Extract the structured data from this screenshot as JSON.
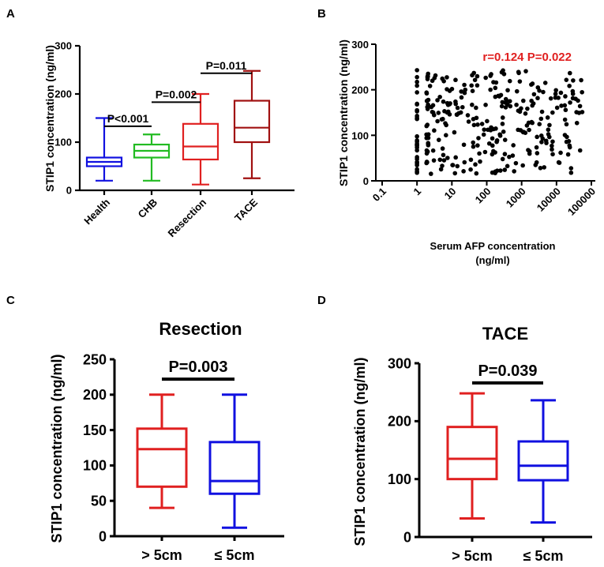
{
  "panels": {
    "a": "A",
    "b": "B",
    "c": "C",
    "d": "D"
  },
  "chart_data": [
    {
      "id": "A",
      "type": "box",
      "ylabel": "STIP1 concentration (ng/ml)",
      "ylim": [
        0,
        300
      ],
      "yticks": [
        0,
        100,
        200,
        300
      ],
      "categories": [
        "Health",
        "CHB",
        "Resection",
        "TACE"
      ],
      "colors": [
        "#1010e0",
        "#22bb22",
        "#e02020",
        "#a01010"
      ],
      "boxes": [
        {
          "min": 20,
          "q1": 50,
          "median": 59,
          "q3": 68,
          "max": 150
        },
        {
          "min": 20,
          "q1": 68,
          "median": 82,
          "q3": 95,
          "max": 116
        },
        {
          "min": 12,
          "q1": 64,
          "median": 91,
          "q3": 138,
          "max": 200
        },
        {
          "min": 25,
          "q1": 100,
          "median": 130,
          "q3": 186,
          "max": 248
        }
      ],
      "comparisons": [
        {
          "from": 0,
          "to": 1,
          "y": 133,
          "label": "P<0.001"
        },
        {
          "from": 1,
          "to": 2,
          "y": 183,
          "label": "P=0.002"
        },
        {
          "from": 2,
          "to": 3,
          "y": 243,
          "label": "P=0.011"
        }
      ]
    },
    {
      "id": "B",
      "type": "scatter",
      "xscale": "log",
      "xlim": [
        0.1,
        100000
      ],
      "xticks": [
        "0.1",
        "1",
        "10",
        "100",
        "1000",
        "10000",
        "100000"
      ],
      "ylim": [
        0,
        300
      ],
      "yticks": [
        0,
        100,
        200,
        300
      ],
      "xlabel_line1": "Serum AFP concentration",
      "xlabel_line2": "(ng/ml)",
      "ylabel": "STIP1 concentration (ng/ml)",
      "annotation": "r=0.124 P=0.022",
      "annotation_color": "#e02020",
      "point_count": 320
    },
    {
      "id": "C",
      "type": "box",
      "title": "Resection",
      "ylabel": "STIP1 concentration (ng/ml)",
      "ylim": [
        0,
        250
      ],
      "yticks": [
        0,
        50,
        100,
        150,
        200,
        250
      ],
      "categories": [
        "> 5cm",
        "≤ 5cm"
      ],
      "colors": [
        "#e02020",
        "#1010e0"
      ],
      "boxes": [
        {
          "min": 40,
          "q1": 70,
          "median": 123,
          "q3": 152,
          "max": 200
        },
        {
          "min": 12,
          "q1": 60,
          "median": 78,
          "q3": 133,
          "max": 200
        }
      ],
      "comparisons": [
        {
          "from": 0,
          "to": 1,
          "y": 222,
          "label": "P=0.003"
        }
      ]
    },
    {
      "id": "D",
      "type": "box",
      "title": "TACE",
      "ylabel": "STIP1 concentration (ng/ml)",
      "ylim": [
        0,
        300
      ],
      "yticks": [
        0,
        100,
        200,
        300
      ],
      "categories": [
        "> 5cm",
        "≤ 5cm"
      ],
      "colors": [
        "#e02020",
        "#1010e0"
      ],
      "boxes": [
        {
          "min": 32,
          "q1": 100,
          "median": 135,
          "q3": 190,
          "max": 248
        },
        {
          "min": 25,
          "q1": 98,
          "median": 123,
          "q3": 165,
          "max": 236
        }
      ],
      "comparisons": [
        {
          "from": 0,
          "to": 1,
          "y": 266,
          "label": "P=0.039"
        }
      ]
    }
  ]
}
